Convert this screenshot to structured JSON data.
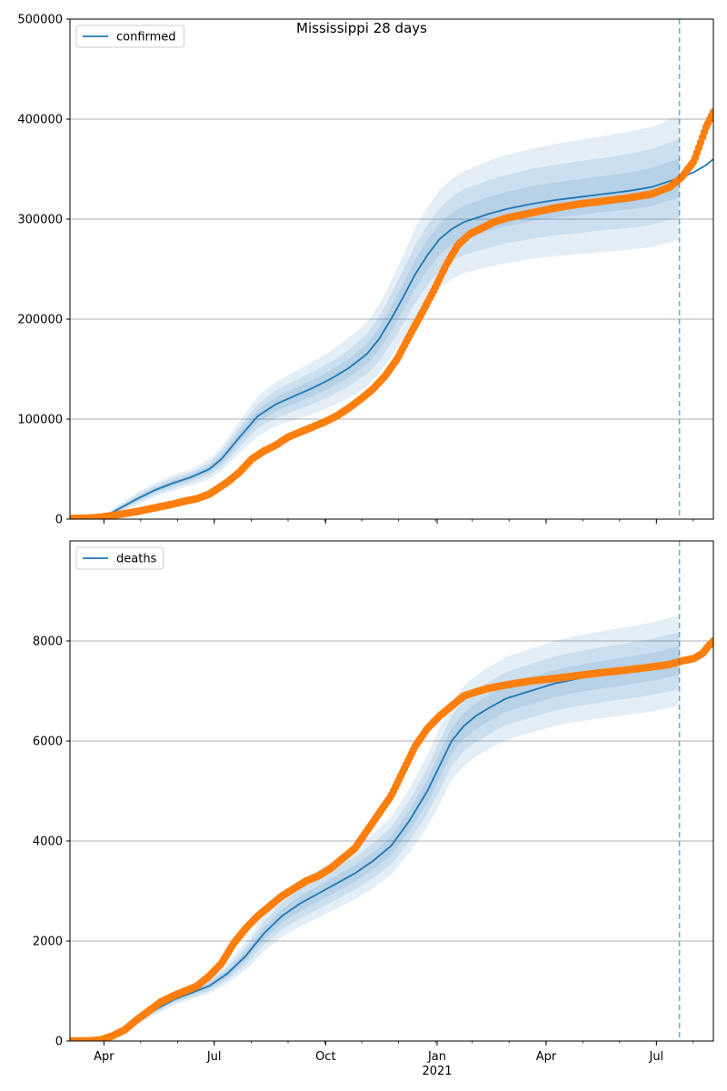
{
  "title": "Mississippi 28 days",
  "colors": {
    "model": "#1f77b4",
    "observed": "#ff7f0e",
    "band": "#1f77b4",
    "grid": "#b0b0b0",
    "forecast_line": "#1f77b4"
  },
  "chart_data": [
    {
      "type": "line",
      "id": "confirmed",
      "legend": [
        "confirmed"
      ],
      "ylim": [
        0,
        500000
      ],
      "yticks": [
        0,
        100000,
        200000,
        300000,
        400000,
        500000
      ],
      "ytick_labels": [
        "0",
        "100000",
        "200000",
        "300000",
        "400000",
        "500000"
      ],
      "x_range_days": [
        0,
        531
      ],
      "forecast_start_day": 503,
      "xticks": [
        {
          "day": 28,
          "label": "Apr"
        },
        {
          "day": 119,
          "label": "Jul"
        },
        {
          "day": 211,
          "label": "Oct"
        },
        {
          "day": 303,
          "label": "Jan"
        },
        {
          "day": 393,
          "label": "Apr"
        },
        {
          "day": 484,
          "label": "Jul"
        }
      ],
      "x_year_label": "2021",
      "model": {
        "days": [
          25,
          40,
          55,
          70,
          85,
          100,
          115,
          125,
          140,
          155,
          170,
          185,
          200,
          215,
          230,
          245,
          255,
          265,
          275,
          285,
          295,
          305,
          315,
          325,
          335,
          345,
          360,
          380,
          400,
          420,
          440,
          460,
          480,
          495,
          505,
          515,
          525,
          531
        ],
        "values": [
          0,
          10000,
          20000,
          29000,
          36000,
          42000,
          50000,
          60000,
          82000,
          103000,
          115000,
          123000,
          131000,
          140000,
          151000,
          165000,
          180000,
          200000,
          222000,
          245000,
          264000,
          280000,
          290000,
          297000,
          301000,
          305000,
          310000,
          315000,
          319000,
          322000,
          325000,
          328000,
          332000,
          338000,
          342000,
          347000,
          354000,
          360000
        ]
      },
      "bands": {
        "days": [
          25,
          40,
          55,
          70,
          85,
          100,
          115,
          125,
          140,
          155,
          170,
          185,
          200,
          215,
          230,
          245,
          255,
          265,
          275,
          285,
          295,
          305,
          315,
          325,
          335,
          345,
          360,
          380,
          400,
          420,
          440,
          460,
          480,
          503
        ],
        "outer_half_width": [
          1000,
          4000,
          6000,
          7000,
          8000,
          8000,
          10000,
          12000,
          16000,
          20000,
          22000,
          24000,
          26000,
          28000,
          30000,
          32000,
          34000,
          38000,
          42000,
          46000,
          48000,
          49000,
          50000,
          51000,
          52000,
          53000,
          54000,
          55000,
          56000,
          57000,
          58000,
          59000,
          60000,
          62000
        ],
        "mid_half_width": [
          700,
          2500,
          4000,
          4500,
          5000,
          5000,
          6000,
          8000,
          10000,
          12000,
          14000,
          15000,
          16000,
          17000,
          18000,
          20000,
          22000,
          25000,
          27000,
          29000,
          30000,
          31000,
          32000,
          33000,
          33000,
          34000,
          34000,
          35000,
          35000,
          36000,
          36000,
          37000,
          38000,
          39000
        ],
        "inner_half_width": [
          300,
          1200,
          2000,
          2200,
          2500,
          2500,
          3000,
          4000,
          5000,
          6000,
          7000,
          7500,
          8000,
          8500,
          9000,
          10000,
          11000,
          12500,
          13500,
          14500,
          15000,
          15500,
          16000,
          16500,
          16500,
          17000,
          17000,
          17500,
          17500,
          18000,
          18000,
          18500,
          19000,
          19500
        ]
      },
      "observed": {
        "days": [
          0,
          15,
          25,
          35,
          45,
          55,
          65,
          75,
          85,
          95,
          105,
          115,
          120,
          130,
          140,
          150,
          160,
          170,
          180,
          190,
          200,
          210,
          220,
          230,
          240,
          250,
          260,
          270,
          280,
          290,
          300,
          310,
          320,
          330,
          340,
          350,
          360,
          380,
          400,
          420,
          440,
          460,
          480,
          495,
          505,
          515,
          520,
          525,
          531
        ],
        "values": [
          500,
          1000,
          2000,
          3500,
          5500,
          7500,
          10000,
          12500,
          15000,
          18000,
          20500,
          25000,
          29000,
          37000,
          47000,
          60000,
          68000,
          74000,
          82000,
          87000,
          92000,
          97000,
          103000,
          111000,
          120000,
          130000,
          143000,
          160000,
          183000,
          205000,
          228000,
          253000,
          274000,
          285000,
          291000,
          297000,
          301000,
          306000,
          311000,
          315000,
          318000,
          321000,
          325000,
          332000,
          342000,
          358000,
          375000,
          392000,
          407000
        ]
      }
    },
    {
      "type": "line",
      "id": "deaths",
      "legend": [
        "deaths"
      ],
      "ylim": [
        0,
        10000
      ],
      "yticks": [
        0,
        2000,
        4000,
        6000,
        8000
      ],
      "ytick_labels": [
        "0",
        "2000",
        "4000",
        "6000",
        "8000"
      ],
      "x_range_days": [
        0,
        531
      ],
      "forecast_start_day": 503,
      "xticks": [
        {
          "day": 28,
          "label": "Apr"
        },
        {
          "day": 119,
          "label": "Jul"
        },
        {
          "day": 211,
          "label": "Oct"
        },
        {
          "day": 303,
          "label": "Jan"
        },
        {
          "day": 393,
          "label": "Apr"
        },
        {
          "day": 484,
          "label": "Jul"
        }
      ],
      "x_year_label": "2021",
      "model": {
        "days": [
          25,
          40,
          55,
          70,
          85,
          100,
          115,
          130,
          145,
          160,
          175,
          190,
          205,
          220,
          235,
          250,
          265,
          280,
          295,
          305,
          315,
          325,
          335,
          345,
          360,
          380,
          400,
          420,
          440,
          460,
          480,
          495,
          505,
          515,
          525,
          531
        ],
        "values": [
          50,
          180,
          380,
          620,
          820,
          960,
          1100,
          1350,
          1700,
          2150,
          2500,
          2750,
          2950,
          3150,
          3350,
          3600,
          3900,
          4400,
          5000,
          5500,
          6000,
          6300,
          6500,
          6650,
          6850,
          7000,
          7150,
          7250,
          7330,
          7400,
          7480,
          7560,
          7620,
          7700,
          7800,
          7900
        ]
      },
      "bands": {
        "days": [
          25,
          40,
          55,
          70,
          85,
          100,
          115,
          130,
          145,
          160,
          175,
          190,
          205,
          220,
          235,
          250,
          265,
          280,
          295,
          305,
          315,
          325,
          335,
          345,
          360,
          380,
          400,
          420,
          440,
          460,
          480,
          503
        ],
        "outer_half_width": [
          10,
          30,
          60,
          90,
          110,
          120,
          150,
          200,
          280,
          360,
          420,
          460,
          480,
          500,
          520,
          540,
          580,
          640,
          720,
          760,
          780,
          800,
          810,
          820,
          830,
          840,
          850,
          860,
          870,
          880,
          890,
          900
        ],
        "mid_half_width": [
          6,
          20,
          40,
          60,
          70,
          80,
          100,
          130,
          180,
          230,
          270,
          300,
          310,
          320,
          330,
          345,
          370,
          410,
          460,
          490,
          500,
          510,
          520,
          525,
          530,
          535,
          540,
          545,
          550,
          555,
          560,
          570
        ],
        "inner_half_width": [
          3,
          10,
          20,
          30,
          35,
          40,
          50,
          65,
          90,
          115,
          135,
          150,
          155,
          160,
          165,
          172,
          185,
          205,
          230,
          245,
          250,
          255,
          260,
          262,
          265,
          268,
          270,
          272,
          275,
          278,
          280,
          285
        ]
      },
      "observed": {
        "days": [
          0,
          15,
          25,
          35,
          45,
          55,
          65,
          75,
          85,
          95,
          105,
          115,
          125,
          135,
          145,
          155,
          165,
          175,
          185,
          195,
          205,
          215,
          225,
          235,
          245,
          255,
          265,
          275,
          285,
          295,
          305,
          315,
          325,
          335,
          345,
          360,
          380,
          400,
          420,
          440,
          460,
          480,
          495,
          505,
          515,
          522,
          527,
          531
        ],
        "values": [
          0,
          0,
          20,
          100,
          220,
          420,
          600,
          780,
          900,
          1000,
          1100,
          1300,
          1550,
          1950,
          2250,
          2500,
          2700,
          2900,
          3050,
          3200,
          3300,
          3450,
          3650,
          3850,
          4200,
          4550,
          4900,
          5400,
          5900,
          6250,
          6500,
          6700,
          6900,
          6980,
          7050,
          7120,
          7200,
          7250,
          7310,
          7370,
          7420,
          7480,
          7530,
          7600,
          7650,
          7750,
          7900,
          8000
        ]
      }
    }
  ]
}
